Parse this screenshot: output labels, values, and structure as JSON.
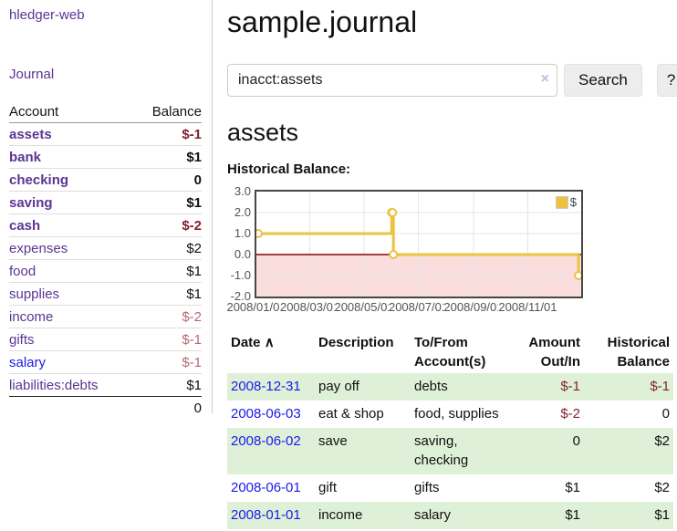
{
  "app": {
    "brand": "hledger-web"
  },
  "sidebar": {
    "journal_link": "Journal",
    "table_header": {
      "account": "Account",
      "balance": "Balance"
    },
    "accounts": [
      {
        "name": "assets",
        "indent": 1,
        "balance": "$-1",
        "bold": true,
        "blue": false
      },
      {
        "name": "bank",
        "indent": 2,
        "balance": "$1",
        "bold": true,
        "blue": false
      },
      {
        "name": "checking",
        "indent": 3,
        "balance": "0",
        "bold": true,
        "blue": false
      },
      {
        "name": "saving",
        "indent": 3,
        "balance": "$1",
        "bold": true,
        "blue": false
      },
      {
        "name": "cash",
        "indent": 2,
        "balance": "$-2",
        "bold": true,
        "blue": false
      },
      {
        "name": "expenses",
        "indent": 1,
        "balance": "$2",
        "bold": false,
        "blue": false
      },
      {
        "name": "food",
        "indent": 2,
        "balance": "$1",
        "bold": false,
        "blue": false
      },
      {
        "name": "supplies",
        "indent": 2,
        "balance": "$1",
        "bold": false,
        "blue": false
      },
      {
        "name": "income",
        "indent": 1,
        "balance": "$-2",
        "bold": false,
        "blue": false
      },
      {
        "name": "gifts",
        "indent": 2,
        "balance": "$-1",
        "bold": false,
        "blue": false
      },
      {
        "name": "salary",
        "indent": 2,
        "balance": "$-1",
        "bold": false,
        "blue": true
      },
      {
        "name": "liabilities:debts",
        "indent": 1,
        "balance": "$1",
        "bold": false,
        "blue": false
      }
    ],
    "total": "0"
  },
  "main": {
    "title": "sample.journal",
    "search": {
      "value": "inacct:assets",
      "clear_icon": "×",
      "search_button": "Search",
      "help_button": "?"
    },
    "account_heading": "assets",
    "chart_label": "Historical Balance:"
  },
  "chart_data": {
    "type": "line",
    "title": "Historical Balance",
    "series": [
      {
        "name": "$",
        "color": "#edc240",
        "step": true,
        "points": [
          [
            "2008-01-01",
            1
          ],
          [
            "2008-06-01",
            2
          ],
          [
            "2008-06-02",
            2
          ],
          [
            "2008-06-03",
            0
          ],
          [
            "2008-12-31",
            -1
          ]
        ]
      }
    ],
    "x_range": [
      "2008-01-01",
      "2008-12-31"
    ],
    "ylim": [
      -2,
      3
    ],
    "yticks": [
      3,
      2,
      1,
      0,
      -1,
      -2
    ],
    "ytick_labels": [
      "3.0",
      "2.0",
      "1.0",
      "0.0",
      "-1.0",
      "-2.0"
    ],
    "xtick_labels": [
      "2008/01/01",
      "2008/03/01",
      "2008/05/01",
      "2008/07/01",
      "2008/09/01",
      "2008/11/01"
    ],
    "legend": {
      "label": "$",
      "position": "top-right"
    },
    "grid": true,
    "zero_line_color": "#8b0000",
    "negative_fill": "#fadddd",
    "marker": {
      "shape": "circle",
      "fill": "#ffffff",
      "stroke": "#edc240"
    }
  },
  "register": {
    "columns": [
      "Date",
      "Description",
      "To/From Account(s)",
      "Amount Out/In",
      "Historical Balance"
    ],
    "sort_indicator": "∧",
    "rows": [
      {
        "date": "2008-12-31",
        "description": "pay off",
        "accounts": "debts",
        "amount": "$-1",
        "balance": "$-1"
      },
      {
        "date": "2008-06-03",
        "description": "eat & shop",
        "accounts": "food, supplies",
        "amount": "$-2",
        "balance": "0"
      },
      {
        "date": "2008-06-02",
        "description": "save",
        "accounts": "saving, checking",
        "amount": "0",
        "balance": "$2"
      },
      {
        "date": "2008-06-01",
        "description": "gift",
        "accounts": "gifts",
        "amount": "$1",
        "balance": "$2"
      },
      {
        "date": "2008-01-01",
        "description": "income",
        "accounts": "salary",
        "amount": "$1",
        "balance": "$1"
      }
    ]
  },
  "colors": {
    "link_purple": "#5b3594",
    "link_blue": "#1a1ae8",
    "negative_strong": "#84212f",
    "negative_soft": "#b56872",
    "row_alt_green": "#dff0d8",
    "series_gold": "#edc240"
  }
}
